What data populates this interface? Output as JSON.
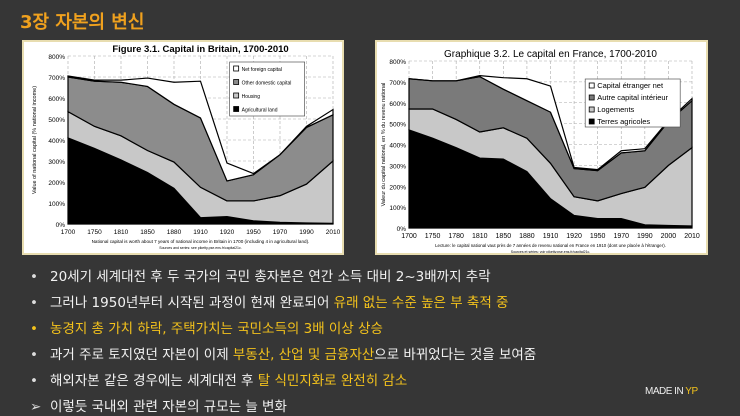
{
  "slide": {
    "title": "3장 자본의 변신",
    "logo_a": "MADE IN ",
    "logo_b": "YP"
  },
  "chart_data": [
    {
      "type": "area",
      "stacked": true,
      "title": "Figure 3.1. Capital in Britain, 1700-2010",
      "ylabel": "Value of national capital (% national income)",
      "note": "National capital is worth about 7 years of national income in Britain in 1700 (including 4 in agricultural land).",
      "source": "Sources and series: see piketty.pse.ens.fr/capital21c.",
      "x": [
        "1700",
        "1750",
        "1810",
        "1850",
        "1880",
        "1910",
        "1920",
        "1950",
        "1970",
        "1990",
        "2010"
      ],
      "yticks": [
        "0%",
        "100%",
        "200%",
        "300%",
        "400%",
        "500%",
        "600%",
        "700%",
        "800%"
      ],
      "ylim": [
        0,
        800
      ],
      "series": [
        {
          "name": "Agricultural land",
          "color": "#000000",
          "values": [
            410,
            360,
            305,
            245,
            170,
            30,
            35,
            15,
            8,
            5,
            3
          ]
        },
        {
          "name": "Housing",
          "color": "#c8c8c8",
          "values": [
            125,
            105,
            115,
            105,
            125,
            145,
            75,
            95,
            127,
            185,
            297
          ]
        },
        {
          "name": "Other domestic capital",
          "color": "#8c8c8c",
          "values": [
            165,
            215,
            255,
            305,
            275,
            330,
            95,
            125,
            195,
            270,
            220
          ]
        },
        {
          "name": "Net foreign capital",
          "color": "#ffffff",
          "values": [
            5,
            5,
            10,
            40,
            105,
            175,
            85,
            5,
            0,
            5,
            25
          ]
        }
      ],
      "legend_order": [
        "Net foreign capital",
        "Other domestic capital",
        "Housing",
        "Agricultural land"
      ],
      "legend": "top-right"
    },
    {
      "type": "area",
      "stacked": true,
      "title": "Graphique 3.2. Le capital en France, 1700-2010",
      "ylabel": "Valeur du capital national, en % du revenu national",
      "note": "Lecture: le capital national vaut près de 7 années de revenu national en France en 1910 (dont une placée à l'étranger).",
      "source": "Sources et séries: voir piketty.pse.ens.fr/capital21c.",
      "x": [
        "1700",
        "1750",
        "1780",
        "1810",
        "1850",
        "1880",
        "1910",
        "1920",
        "1950",
        "1970",
        "1990",
        "2000",
        "2010"
      ],
      "yticks": [
        "0%",
        "100%",
        "200%",
        "300%",
        "400%",
        "500%",
        "600%",
        "700%",
        "800%"
      ],
      "ylim": [
        0,
        800
      ],
      "series": [
        {
          "name": "Terres agricoles",
          "color": "#000000",
          "values": [
            470,
            430,
            385,
            335,
            330,
            270,
            140,
            60,
            45,
            45,
            15,
            12,
            10
          ]
        },
        {
          "name": "Logements",
          "color": "#c8c8c8",
          "values": [
            100,
            140,
            135,
            125,
            150,
            160,
            170,
            90,
            85,
            120,
            180,
            288,
            375
          ]
        },
        {
          "name": "Autre capital intérieur",
          "color": "#7a7a7a",
          "values": [
            145,
            135,
            185,
            265,
            185,
            180,
            245,
            135,
            145,
            195,
            175,
            210,
            225
          ]
        },
        {
          "name": "Capital étranger net",
          "color": "#ffffff",
          "values": [
            0,
            0,
            0,
            5,
            55,
            105,
            125,
            5,
            5,
            10,
            10,
            5,
            10
          ]
        }
      ],
      "legend_order": [
        "Capital étranger net",
        "Autre capital intérieur",
        "Logements",
        "Terres agricoles"
      ],
      "legend": "top-right"
    }
  ],
  "bullets": [
    {
      "marker": "•",
      "parts": [
        {
          "t": "20세기 세계대전 후 두 국가의 국민 총자본은 연간 소득 대비 2~3배까지 추락",
          "h": false
        }
      ]
    },
    {
      "marker": "•",
      "parts": [
        {
          "t": "그러나 1950년부터 시작된 과정이 현재 완료되어 ",
          "h": false
        },
        {
          "t": "유래 없는 수준 높은 부 축적 중",
          "h": true
        }
      ]
    },
    {
      "marker": "•",
      "hl": true,
      "parts": [
        {
          "t": "농경지 총 가치 하락, 주택가치는 국민소득의 3배 이상 상승",
          "h": true
        }
      ]
    },
    {
      "marker": "•",
      "parts": [
        {
          "t": "과거 주로 토지였던 자본이 이제 ",
          "h": false
        },
        {
          "t": "부동산, 산업 및 금융자산",
          "h": true
        },
        {
          "t": "으로 바뀌었다는 것을 보여줌",
          "h": false
        }
      ]
    },
    {
      "marker": "•",
      "parts": [
        {
          "t": "해외자본 같은 경우에는 세계대전 후 ",
          "h": false
        },
        {
          "t": "탈 식민지화로 완전히 감소",
          "h": true
        }
      ]
    },
    {
      "marker": "➢",
      "parts": [
        {
          "t": "이렇듯 국내외 관련 자본의 규모는 늘 변화",
          "h": false
        }
      ]
    }
  ]
}
